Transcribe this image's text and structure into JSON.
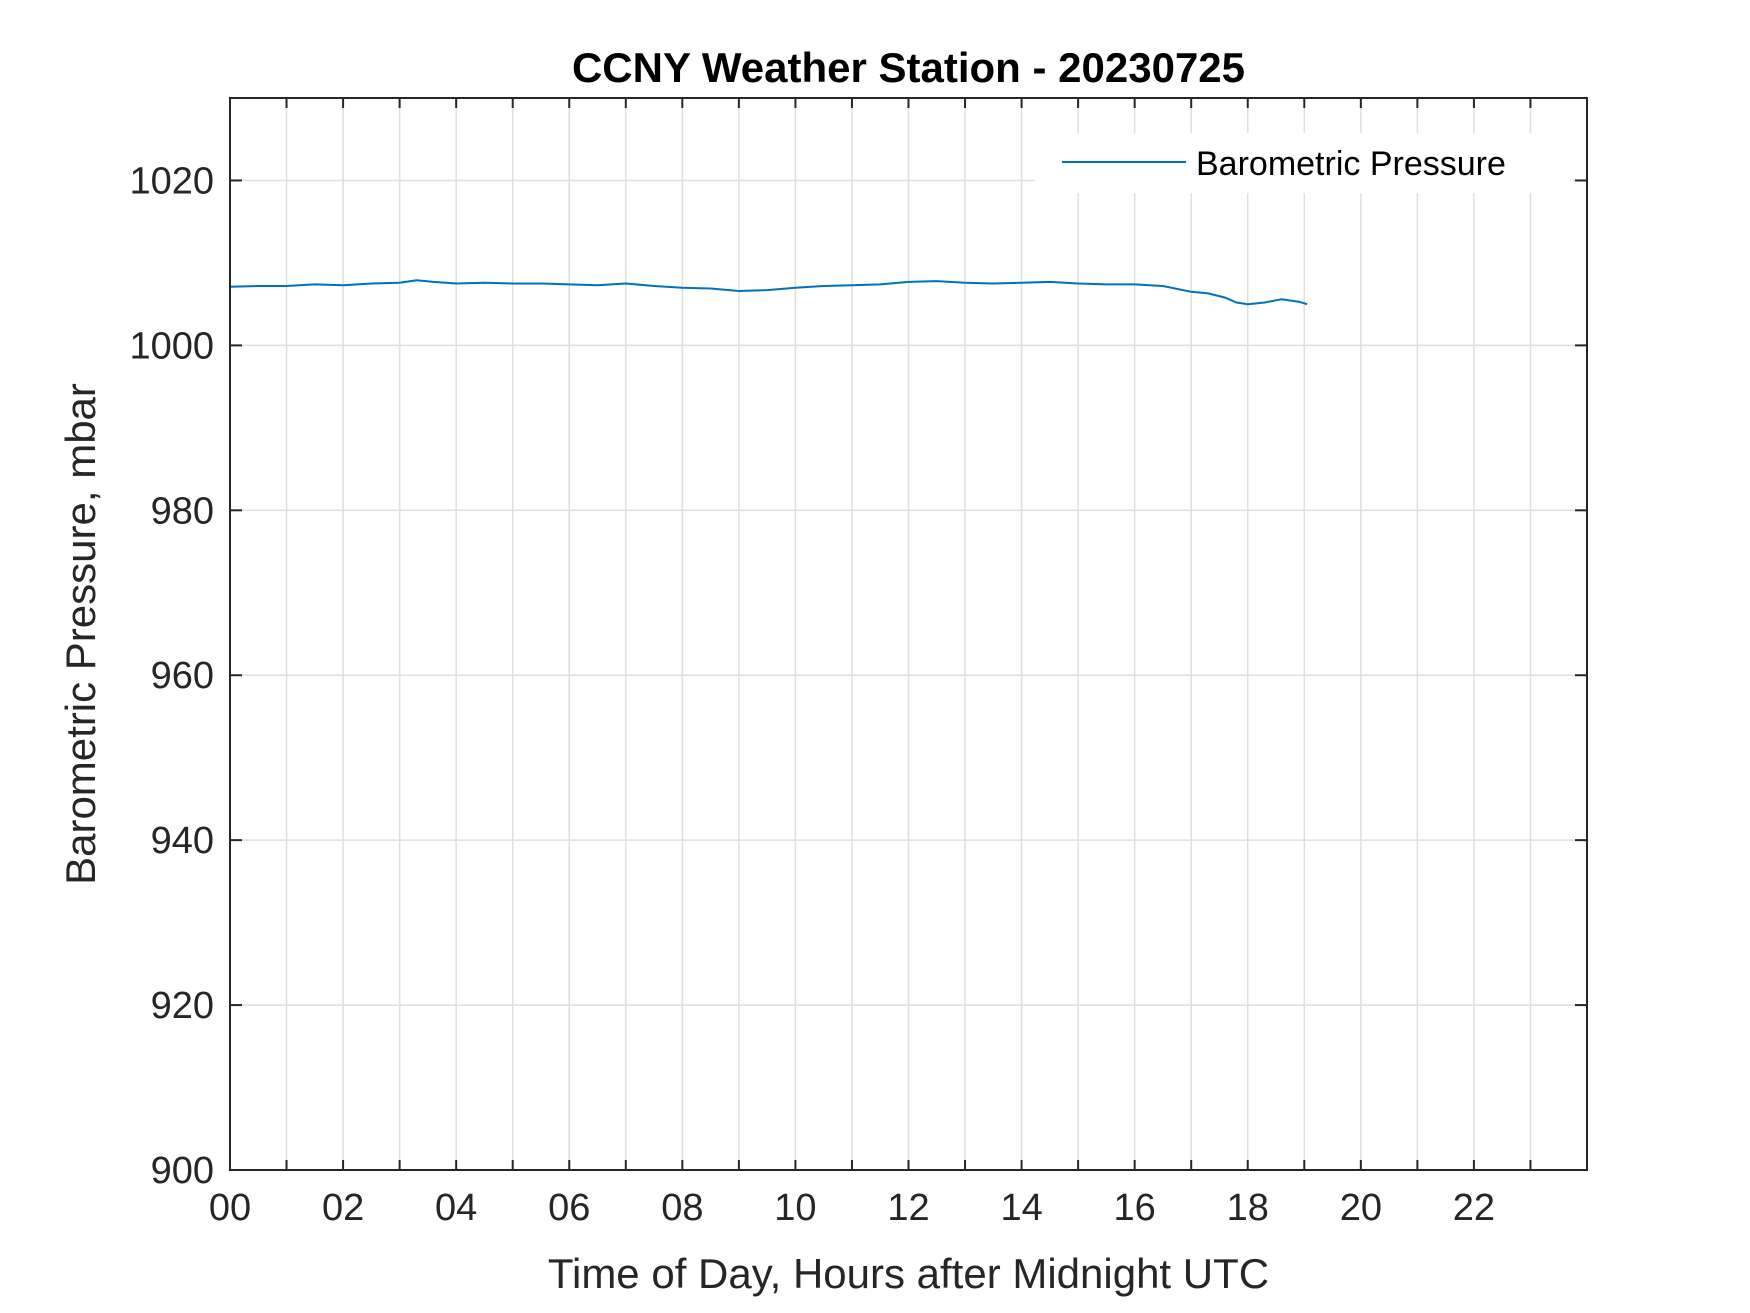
{
  "chart_data": {
    "type": "line",
    "title": "CCNY Weather Station - 20230725",
    "xlabel": "Time of Day, Hours after Midnight UTC",
    "ylabel": "Barometric Pressure, mbar",
    "xlim": [
      0,
      24
    ],
    "ylim": [
      900,
      1030
    ],
    "xticks": [
      0,
      2,
      4,
      6,
      8,
      10,
      12,
      14,
      16,
      18,
      20,
      22
    ],
    "xtick_labels": [
      "00",
      "02",
      "04",
      "06",
      "08",
      "10",
      "12",
      "14",
      "16",
      "18",
      "20",
      "22"
    ],
    "yticks": [
      900,
      920,
      940,
      960,
      980,
      1000,
      1020
    ],
    "ytick_labels": [
      "900",
      "920",
      "940",
      "960",
      "980",
      "1000",
      "1020"
    ],
    "grid": true,
    "grid_x_step": 1,
    "legend_position": "top-right",
    "series": [
      {
        "name": "Barometric Pressure",
        "color": "#0072bd",
        "x": [
          0,
          0.5,
          1,
          1.5,
          2,
          2.5,
          3,
          3.3,
          3.6,
          4,
          4.5,
          5,
          5.5,
          6,
          6.5,
          7,
          7.5,
          8,
          8.5,
          9,
          9.5,
          10,
          10.5,
          11,
          11.5,
          12,
          12.5,
          13,
          13.5,
          14,
          14.5,
          15,
          15.5,
          16,
          16.5,
          17,
          17.3,
          17.6,
          17.8,
          18,
          18.3,
          18.6,
          18.9,
          19.05
        ],
        "y": [
          1007.1,
          1007.2,
          1007.2,
          1007.4,
          1007.3,
          1007.5,
          1007.6,
          1007.9,
          1007.7,
          1007.5,
          1007.6,
          1007.5,
          1007.5,
          1007.4,
          1007.3,
          1007.5,
          1007.2,
          1007.0,
          1006.9,
          1006.6,
          1006.7,
          1007.0,
          1007.2,
          1007.3,
          1007.4,
          1007.7,
          1007.8,
          1007.6,
          1007.5,
          1007.6,
          1007.7,
          1007.5,
          1007.4,
          1007.4,
          1007.2,
          1006.5,
          1006.3,
          1005.8,
          1005.2,
          1005.0,
          1005.2,
          1005.6,
          1005.3,
          1005.0
        ]
      }
    ]
  }
}
